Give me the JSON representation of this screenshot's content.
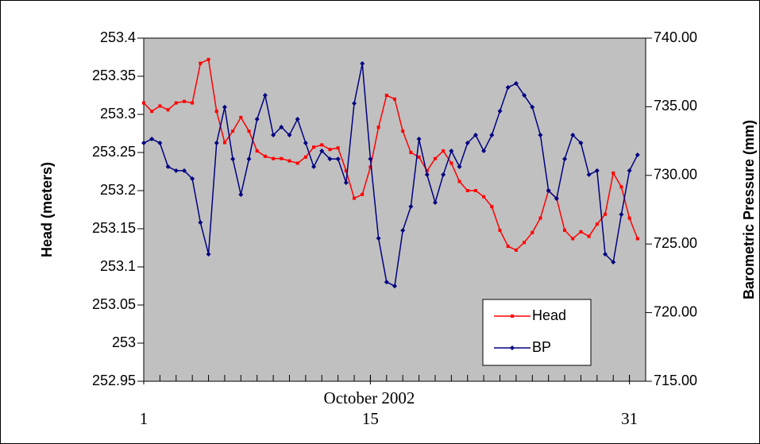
{
  "chart_data": {
    "type": "line",
    "xlabel": "October 2002",
    "ylabel": "Head (meters)",
    "y2label": "Barometric Pressure (mm)",
    "x": [
      1,
      1.5,
      2,
      2.5,
      3,
      3.5,
      4,
      4.5,
      5,
      5.5,
      6,
      6.5,
      7,
      7.5,
      8,
      8.5,
      9,
      9.5,
      10,
      10.5,
      11,
      11.5,
      12,
      12.5,
      13,
      13.5,
      14,
      14.5,
      15,
      15.5,
      16,
      16.5,
      17,
      17.5,
      18,
      18.5,
      19,
      19.5,
      20,
      20.5,
      21,
      21.5,
      22,
      22.5,
      23,
      23.5,
      24,
      24.5,
      25,
      25.5,
      26,
      26.5,
      27,
      27.5,
      28,
      28.5,
      29,
      29.5,
      30,
      30.5,
      31,
      31.5
    ],
    "series": [
      {
        "name": "Head",
        "color": "#ff0000",
        "marker": "square",
        "values": [
          253.315,
          253.304,
          253.311,
          253.306,
          253.315,
          253.317,
          253.315,
          253.367,
          253.372,
          253.304,
          253.263,
          253.278,
          253.296,
          253.278,
          253.252,
          253.245,
          253.242,
          253.242,
          253.239,
          253.236,
          253.244,
          253.257,
          253.26,
          253.254,
          253.256,
          253.226,
          253.19,
          253.195,
          253.231,
          253.283,
          253.325,
          253.32,
          253.278,
          253.25,
          253.244,
          253.226,
          253.242,
          253.252,
          253.236,
          253.212,
          253.2,
          253.2,
          253.192,
          253.179,
          253.148,
          253.127,
          253.122,
          253.132,
          253.145,
          253.164,
          253.2,
          253.19,
          253.148,
          253.137,
          253.146,
          253.14,
          253.156,
          253.169,
          253.223,
          253.205,
          253.164,
          253.137
        ]
      },
      {
        "name": "BP",
        "color": "#000080",
        "marker": "diamond",
        "axis": "y2",
        "values": [
          732.36,
          732.65,
          732.36,
          730.63,
          730.34,
          730.34,
          729.76,
          726.57,
          724.26,
          732.36,
          734.97,
          731.2,
          728.6,
          731.2,
          734.1,
          735.83,
          732.94,
          733.52,
          732.94,
          734.1,
          732.36,
          730.63,
          731.78,
          731.2,
          731.2,
          729.47,
          735.25,
          738.15,
          731.2,
          725.42,
          722.23,
          721.94,
          725.99,
          727.73,
          732.65,
          730.05,
          728.02,
          730.05,
          731.78,
          730.63,
          732.36,
          732.94,
          731.78,
          732.94,
          734.68,
          736.41,
          736.7,
          735.83,
          734.97,
          732.94,
          728.89,
          728.31,
          731.2,
          732.94,
          732.36,
          730.05,
          730.34,
          724.26,
          723.68,
          727.15,
          730.34,
          731.49
        ]
      }
    ],
    "xlim": [
      1,
      32
    ],
    "xticks": [
      1,
      15,
      31
    ],
    "xminor_ticks": [
      1,
      2,
      3,
      4,
      5,
      6,
      7,
      8,
      9,
      10,
      11,
      12,
      13,
      14,
      15,
      16,
      17,
      18,
      19,
      20,
      21,
      22,
      23,
      24,
      25,
      26,
      27,
      28,
      29,
      30,
      31,
      32
    ],
    "ylim": [
      252.95,
      253.4
    ],
    "yticks": [
      252.95,
      253,
      253.05,
      253.1,
      253.15,
      253.2,
      253.25,
      253.3,
      253.35,
      253.4
    ],
    "y2lim": [
      715,
      740
    ],
    "y2ticks": [
      {
        "value": 715,
        "label": "715.00"
      },
      {
        "value": 720,
        "label": "720.00"
      },
      {
        "value": 725,
        "label": "725.00"
      },
      {
        "value": 730,
        "label": "730.00"
      },
      {
        "value": 735,
        "label": "735.00"
      },
      {
        "value": 740,
        "label": "740.00"
      }
    ],
    "plot_background": "#c0c0c0",
    "legend": "lower right"
  }
}
